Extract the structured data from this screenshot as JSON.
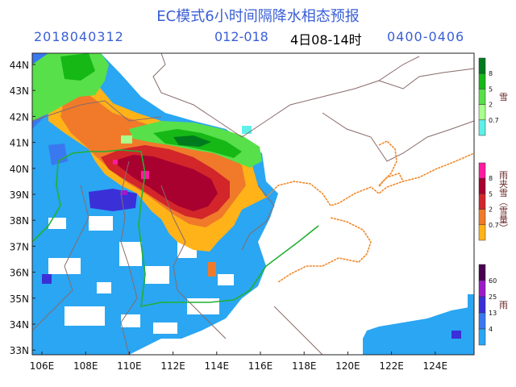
{
  "header": {
    "title": "EC模式6小时间隔降水相态预报",
    "init_time": "2018040312",
    "step_range": "012-018",
    "period_local": "4日08-14时",
    "period_utc": "0400-0406"
  },
  "axes": {
    "lat_labels": [
      "44N",
      "43N",
      "42N",
      "41N",
      "40N",
      "39N",
      "38N",
      "37N",
      "36N",
      "35N",
      "34N",
      "33N"
    ],
    "lon_labels": [
      "106E",
      "108E",
      "110E",
      "112E",
      "114E",
      "116E",
      "118E",
      "120E",
      "122E",
      "124E"
    ]
  },
  "legends": {
    "snow": {
      "title": "雪",
      "ticks": [
        "8",
        "5",
        "2",
        "0.7"
      ],
      "colors": [
        "#007a1e",
        "#16b816",
        "#57e04a",
        "#a8ff8a",
        "#5ff0e8"
      ]
    },
    "sleet": {
      "title": "雨夹雪（雪量）",
      "ticks": [
        "8",
        "5",
        "2",
        "0.7"
      ],
      "colors": [
        "#ff1aa0",
        "#a8002f",
        "#d2262a",
        "#f07a2a",
        "#ffb319"
      ]
    },
    "rain": {
      "title": "雨",
      "ticks": [
        "60",
        "25",
        "13",
        "4"
      ],
      "colors": [
        "#4a0050",
        "#9c1ac8",
        "#3b2fd8",
        "#3a78f0",
        "#2aa6f2"
      ]
    }
  },
  "colors": {
    "header_text": "#3a5fd6",
    "coast": "#f08a2c",
    "province_border": "#8a6a6a",
    "river": "#22b030"
  }
}
